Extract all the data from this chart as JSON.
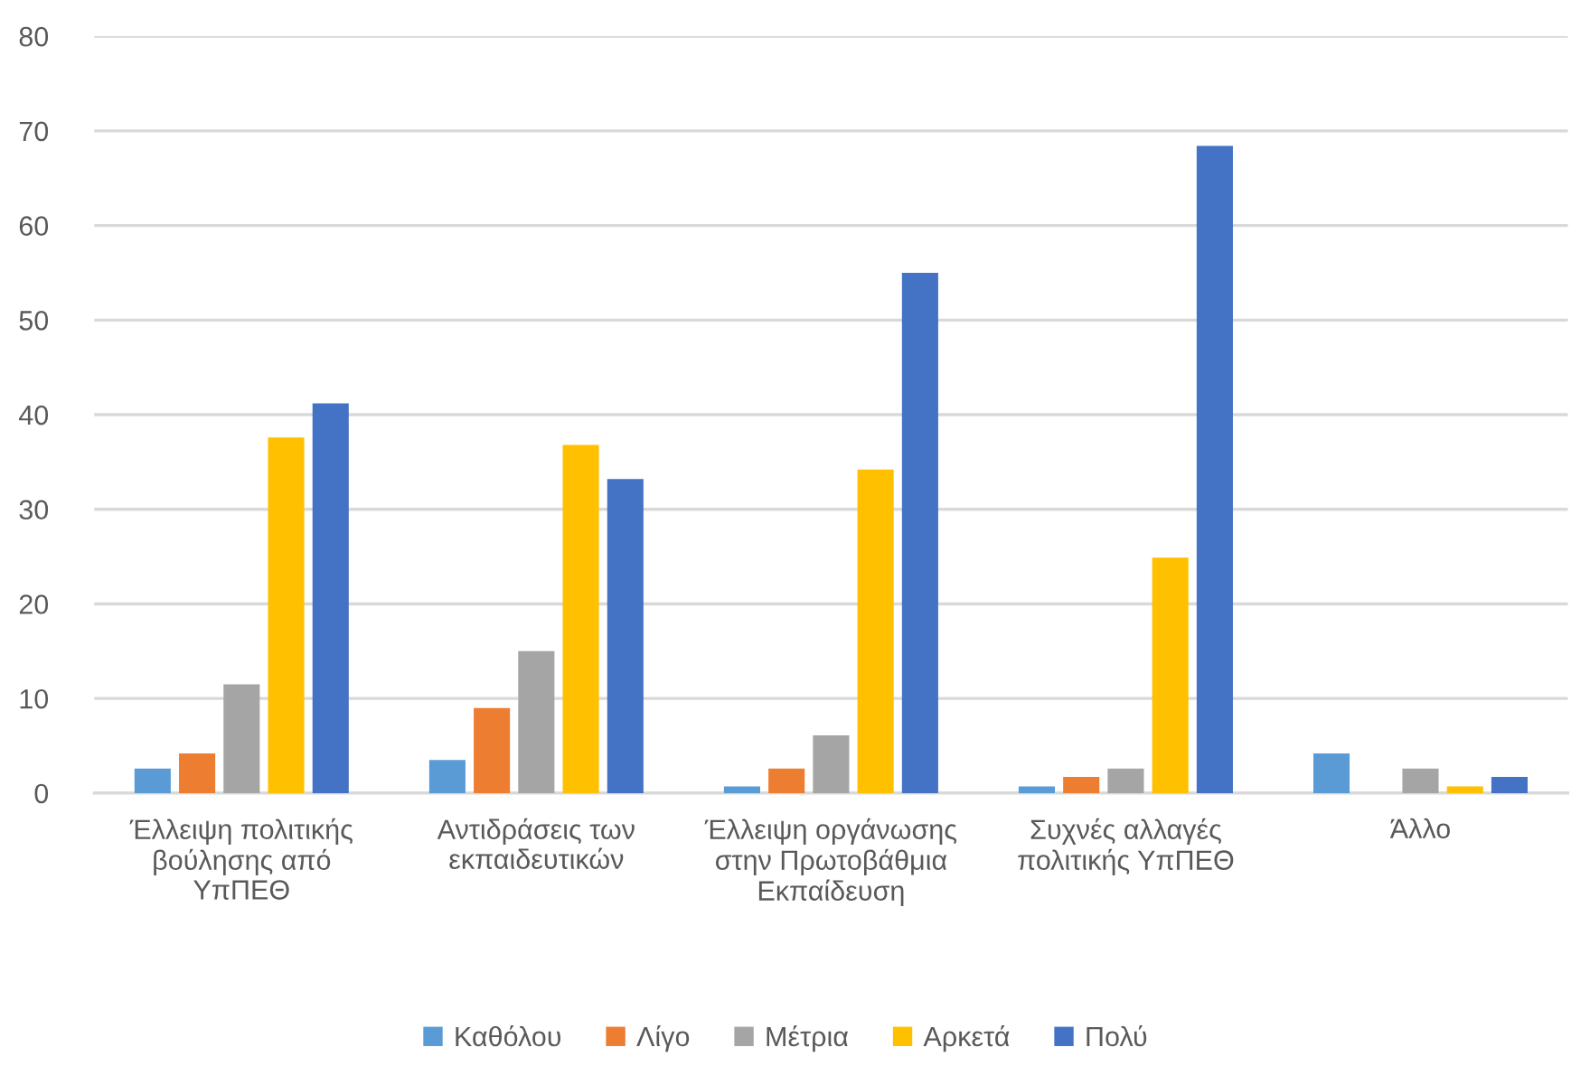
{
  "chart_data": {
    "type": "bar",
    "categories": [
      "Έλλειψη πολιτικής βούλησης από ΥπΠΕΘ",
      "Αντιδράσεις των εκπαιδευτικών",
      "Έλλειψη οργάνωσης στην Πρωτοβάθμια Εκπαίδευση",
      "Συχνές αλλαγές πολιτικής ΥπΠΕΘ",
      "Άλλο"
    ],
    "series": [
      {
        "name": "Καθόλου",
        "color": "#5b9bd5",
        "values": [
          2.6,
          3.5,
          0.7,
          0.7,
          4.2
        ]
      },
      {
        "name": "Λίγο",
        "color": "#ed7d31",
        "values": [
          4.2,
          9.0,
          2.6,
          1.7,
          0
        ]
      },
      {
        "name": "Μέτρια",
        "color": "#a5a5a5",
        "values": [
          11.5,
          15.0,
          6.1,
          2.6,
          2.6
        ]
      },
      {
        "name": "Αρκετά",
        "color": "#ffc000",
        "values": [
          37.6,
          36.8,
          34.2,
          24.9,
          0.7
        ]
      },
      {
        "name": "Πολύ",
        "color": "#4472c4",
        "values": [
          41.2,
          33.2,
          55.0,
          68.4,
          1.7
        ]
      }
    ],
    "ylim": [
      0,
      80
    ],
    "yticks": [
      0,
      10,
      20,
      30,
      40,
      50,
      60,
      70,
      80
    ],
    "grid": "y",
    "legend": "bottom"
  }
}
